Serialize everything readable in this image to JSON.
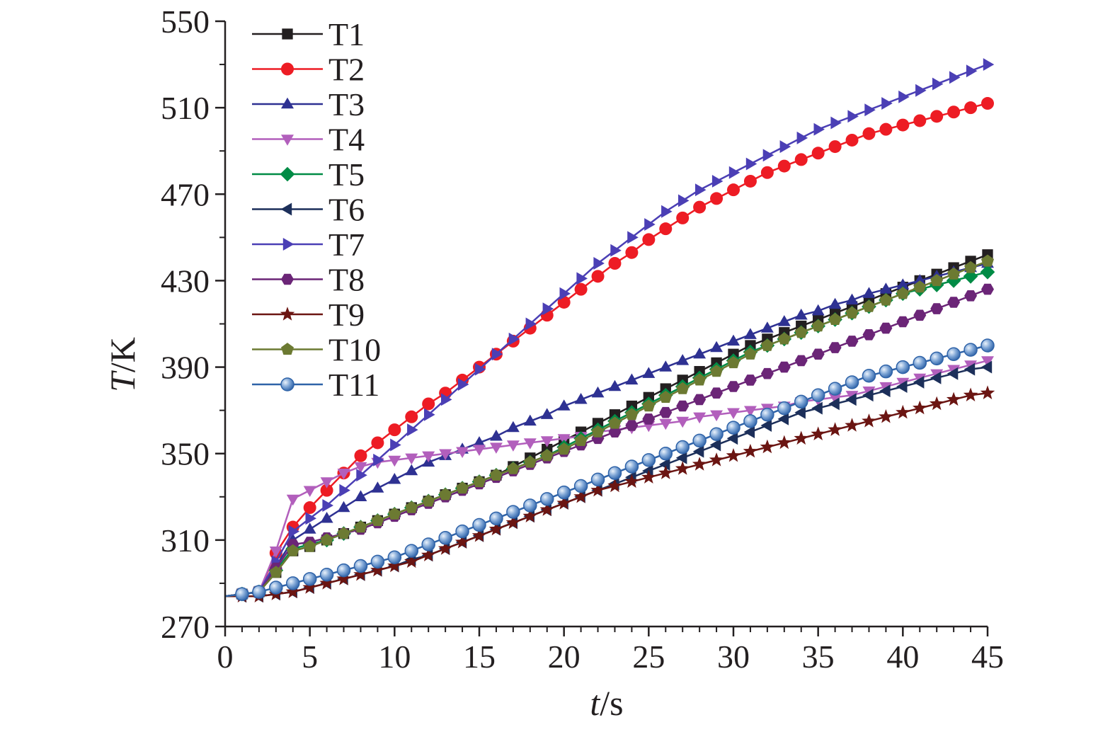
{
  "chart_data": {
    "type": "line",
    "xlabel": "t/s",
    "ylabel": "T/K",
    "xlabel_parts": {
      "var": "t",
      "unit": "/s"
    },
    "ylabel_parts": {
      "var": "T",
      "unit": "/K"
    },
    "xlim": [
      0,
      45
    ],
    "ylim": [
      270,
      550
    ],
    "x_ticks": [
      0,
      5,
      10,
      15,
      20,
      25,
      30,
      35,
      40,
      45
    ],
    "x_tick_labels": [
      "0",
      "5",
      "10",
      "15",
      "20",
      "25",
      "30",
      "35",
      "40",
      "45"
    ],
    "y_ticks": [
      270,
      310,
      350,
      390,
      430,
      470,
      510,
      550
    ],
    "y_tick_labels": [
      "270",
      "310",
      "350",
      "390",
      "430",
      "470",
      "510",
      "550"
    ],
    "grid": false,
    "legend_position": "top-left",
    "x": [
      0,
      1,
      2,
      3,
      4,
      5,
      6,
      7,
      8,
      9,
      10,
      11,
      12,
      13,
      14,
      15,
      16,
      17,
      18,
      19,
      20,
      21,
      22,
      23,
      24,
      25,
      26,
      27,
      28,
      29,
      30,
      31,
      32,
      33,
      34,
      35,
      36,
      37,
      38,
      39,
      40,
      41,
      42,
      43,
      44,
      45
    ],
    "series": [
      {
        "name": "T1",
        "color": "#231f20",
        "marker": "square",
        "values": [
          284,
          285,
          286,
          295,
          305,
          307,
          310,
          313,
          316,
          319,
          322,
          325,
          328,
          331,
          334,
          337,
          340,
          344,
          348,
          352,
          356,
          360,
          364,
          368,
          372,
          376,
          380,
          384,
          388,
          392,
          396,
          400,
          403,
          406,
          409,
          412,
          415,
          418,
          421,
          424,
          427,
          430,
          433,
          436,
          439,
          442
        ]
      },
      {
        "name": "T2",
        "color": "#ed1c24",
        "marker": "circle",
        "values": [
          284,
          285,
          286,
          304,
          316,
          325,
          333,
          341,
          349,
          355,
          361,
          367,
          373,
          378,
          384,
          390,
          396,
          402,
          408,
          414,
          420,
          426,
          432,
          438,
          443,
          449,
          454,
          459,
          464,
          468,
          472,
          476,
          480,
          483,
          486,
          489,
          492,
          495,
          498,
          500,
          502,
          504,
          506,
          508,
          510,
          512
        ]
      },
      {
        "name": "T3",
        "color": "#2e3192",
        "marker": "triangle-up",
        "values": [
          284,
          285,
          286,
          298,
          310,
          315,
          320,
          325,
          330,
          334,
          338,
          342,
          346,
          349,
          352,
          355,
          358,
          362,
          365,
          368,
          372,
          375,
          378,
          381,
          384,
          387,
          390,
          393,
          396,
          399,
          402,
          405,
          408,
          411,
          414,
          416,
          419,
          421,
          424,
          426,
          428,
          430,
          432,
          434,
          436,
          438
        ]
      },
      {
        "name": "T4",
        "color": "#b25fbc",
        "marker": "triangle-down",
        "values": [
          284,
          285,
          286,
          305,
          329,
          333,
          337,
          341,
          344,
          346,
          347,
          348,
          349,
          350,
          351,
          352,
          353,
          354,
          355,
          356,
          357,
          358,
          360,
          361,
          362,
          363,
          364,
          365,
          367,
          368,
          369,
          370,
          371,
          372,
          374,
          375,
          376,
          377,
          379,
          381,
          383,
          385,
          387,
          389,
          391,
          393
        ]
      },
      {
        "name": "T5",
        "color": "#008b45",
        "marker": "diamond",
        "values": [
          284,
          285,
          286,
          296,
          306,
          308,
          310,
          313,
          316,
          319,
          322,
          325,
          328,
          331,
          334,
          337,
          340,
          343,
          346,
          349,
          353,
          357,
          361,
          365,
          369,
          373,
          377,
          381,
          385,
          389,
          393,
          397,
          400,
          403,
          406,
          409,
          412,
          415,
          418,
          421,
          424,
          426,
          428,
          430,
          432,
          434
        ]
      },
      {
        "name": "T6",
        "color": "#1c2f5a",
        "marker": "triangle-left",
        "values": [
          284,
          284,
          284,
          285,
          286,
          288,
          290,
          292,
          294,
          296,
          298,
          301,
          303,
          306,
          309,
          312,
          315,
          318,
          321,
          324,
          327,
          330,
          333,
          336,
          339,
          342,
          345,
          348,
          351,
          354,
          357,
          360,
          363,
          366,
          369,
          371,
          373,
          375,
          377,
          379,
          381,
          383,
          385,
          387,
          389,
          390
        ]
      },
      {
        "name": "T7",
        "color": "#4b3fb5",
        "marker": "triangle-right",
        "values": [
          284,
          285,
          286,
          300,
          314,
          320,
          326,
          333,
          340,
          347,
          354,
          361,
          368,
          375,
          382,
          389,
          396,
          403,
          410,
          417,
          424,
          431,
          438,
          444,
          450,
          456,
          462,
          467,
          472,
          476,
          480,
          484,
          488,
          492,
          496,
          500,
          503,
          506,
          509,
          512,
          515,
          518,
          521,
          524,
          527,
          530
        ]
      },
      {
        "name": "T8",
        "color": "#6b2577",
        "marker": "hexagon",
        "values": [
          284,
          285,
          286,
          297,
          308,
          309,
          311,
          313,
          315,
          318,
          321,
          324,
          327,
          330,
          333,
          336,
          339,
          342,
          345,
          348,
          351,
          354,
          357,
          360,
          363,
          366,
          369,
          372,
          375,
          378,
          381,
          384,
          387,
          390,
          393,
          396,
          399,
          402,
          405,
          408,
          411,
          414,
          417,
          420,
          423,
          426
        ]
      },
      {
        "name": "T9",
        "color": "#6b1512",
        "marker": "star",
        "values": [
          284,
          284,
          284,
          285,
          286,
          288,
          290,
          292,
          294,
          296,
          298,
          300,
          303,
          306,
          309,
          312,
          315,
          318,
          321,
          324,
          327,
          330,
          333,
          335,
          337,
          339,
          341,
          343,
          345,
          347,
          349,
          351,
          353,
          355,
          357,
          359,
          361,
          363,
          365,
          367,
          369,
          371,
          373,
          375,
          377,
          378
        ]
      },
      {
        "name": "T10",
        "color": "#6c7a32",
        "marker": "pentagon",
        "values": [
          284,
          285,
          286,
          295,
          305,
          307,
          310,
          313,
          316,
          319,
          322,
          325,
          328,
          331,
          334,
          337,
          340,
          343,
          346,
          349,
          352,
          356,
          360,
          364,
          368,
          372,
          376,
          380,
          384,
          388,
          392,
          396,
          400,
          403,
          406,
          409,
          412,
          415,
          418,
          421,
          424,
          427,
          430,
          433,
          436,
          439
        ]
      },
      {
        "name": "T11",
        "color": "#2f63a8",
        "marker": "sphere",
        "values": [
          284,
          285,
          286,
          288,
          290,
          292,
          294,
          296,
          298,
          300,
          302,
          305,
          308,
          311,
          314,
          317,
          320,
          323,
          326,
          329,
          332,
          335,
          338,
          341,
          344,
          347,
          350,
          353,
          356,
          359,
          362,
          365,
          368,
          371,
          374,
          377,
          380,
          383,
          386,
          388,
          390,
          392,
          394,
          396,
          398,
          400
        ]
      }
    ]
  }
}
